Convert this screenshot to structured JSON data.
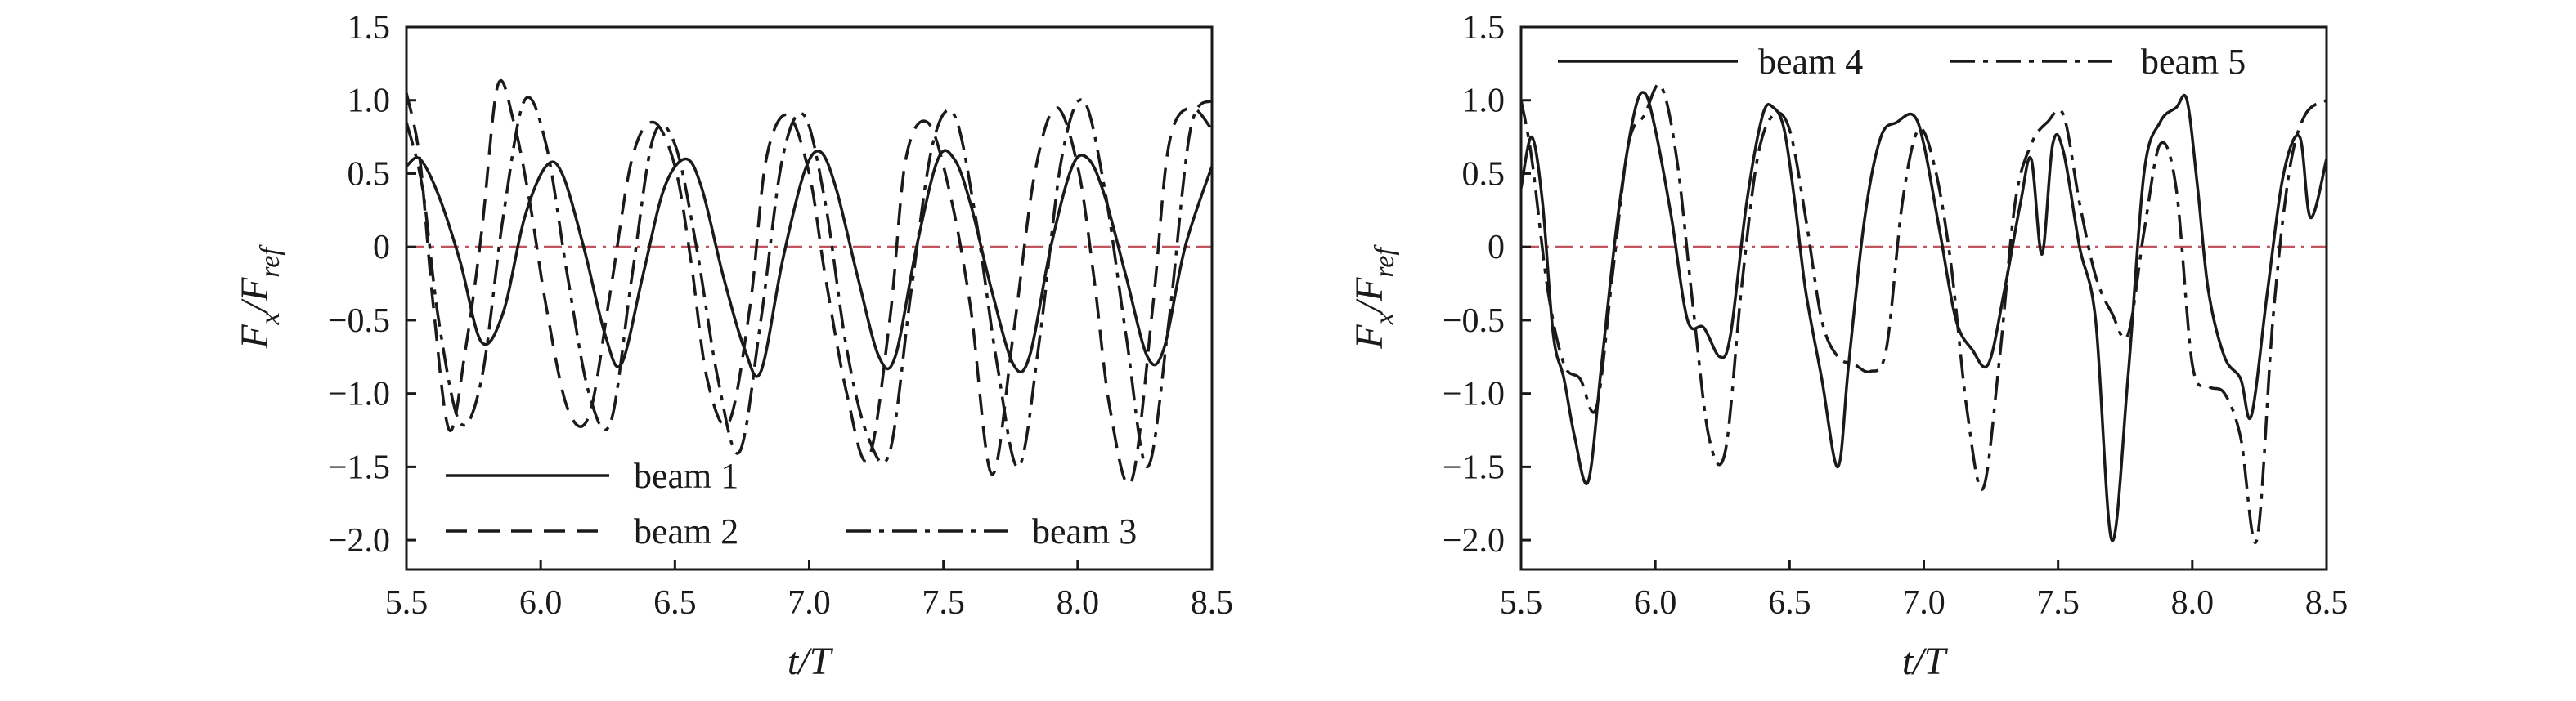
{
  "chart_data": [
    {
      "type": "line",
      "xlabel": "t/T",
      "ylabel": {
        "main": "F",
        "sub_x": "x",
        "sep": "/",
        "den": "F",
        "sub_ref": "ref"
      },
      "xlim": [
        5.5,
        8.5
      ],
      "ylim": [
        -2.2,
        1.5
      ],
      "xticks": [
        "5.5",
        "6.0",
        "6.5",
        "7.0",
        "7.5",
        "8.0",
        "8.5"
      ],
      "yticks": [
        "1.5",
        "1.0",
        "0.5",
        "0",
        "-0.5",
        "-1.0",
        "-1.5",
        "-2.0"
      ],
      "legend_position": "bottom",
      "reference_line": {
        "y": 0,
        "color": "#c0555f"
      },
      "series": [
        {
          "name": "beam 1",
          "style": "solid",
          "x": [
            5.5,
            5.55,
            5.62,
            5.7,
            5.78,
            5.86,
            5.94,
            6.02,
            6.08,
            6.16,
            6.24,
            6.3,
            6.38,
            6.46,
            6.54,
            6.6,
            6.68,
            6.76,
            6.82,
            6.9,
            6.98,
            7.04,
            7.1,
            7.18,
            7.26,
            7.32,
            7.4,
            7.48,
            7.54,
            7.6,
            7.68,
            7.76,
            7.82,
            7.9,
            7.98,
            8.04,
            8.1,
            8.18,
            8.26,
            8.32,
            8.4,
            8.5
          ],
          "y": [
            0.55,
            0.6,
            0.35,
            -0.1,
            -0.65,
            -0.45,
            0.2,
            0.55,
            0.5,
            0.0,
            -0.6,
            -0.8,
            -0.2,
            0.4,
            0.6,
            0.4,
            -0.2,
            -0.7,
            -0.85,
            -0.1,
            0.5,
            0.65,
            0.4,
            -0.2,
            -0.75,
            -0.75,
            0.0,
            0.6,
            0.6,
            0.3,
            -0.3,
            -0.8,
            -0.75,
            0.0,
            0.55,
            0.6,
            0.35,
            -0.2,
            -0.75,
            -0.7,
            0.0,
            0.55
          ]
        },
        {
          "name": "beam 2",
          "style": "dashed",
          "x": [
            5.5,
            5.55,
            5.6,
            5.66,
            5.72,
            5.78,
            5.84,
            5.9,
            5.96,
            6.02,
            6.1,
            6.18,
            6.26,
            6.34,
            6.42,
            6.5,
            6.56,
            6.62,
            6.7,
            6.78,
            6.84,
            6.92,
            7.0,
            7.06,
            7.14,
            7.22,
            7.3,
            7.36,
            7.44,
            7.52,
            7.6,
            7.68,
            7.76,
            7.84,
            7.92,
            8.0,
            8.06,
            8.12,
            8.2,
            8.28,
            8.34,
            8.42,
            8.5
          ],
          "y": [
            1.05,
            0.6,
            -0.4,
            -1.25,
            -0.7,
            0.1,
            1.1,
            0.85,
            0.3,
            -0.4,
            -1.1,
            -1.15,
            -0.3,
            0.6,
            0.85,
            0.55,
            -0.1,
            -0.9,
            -1.2,
            -0.4,
            0.6,
            0.9,
            0.5,
            -0.2,
            -1.0,
            -1.45,
            -0.5,
            0.6,
            0.85,
            0.4,
            -0.4,
            -1.55,
            -0.6,
            0.5,
            0.95,
            0.55,
            -0.2,
            -1.1,
            -1.6,
            -0.4,
            0.7,
            0.95,
            0.8
          ]
        },
        {
          "name": "beam 3",
          "style": "dashdot",
          "x": [
            5.5,
            5.56,
            5.62,
            5.7,
            5.78,
            5.86,
            5.94,
            6.02,
            6.1,
            6.18,
            6.26,
            6.34,
            6.42,
            6.5,
            6.58,
            6.66,
            6.74,
            6.82,
            6.9,
            6.98,
            7.06,
            7.14,
            7.22,
            7.3,
            7.38,
            7.46,
            7.54,
            7.62,
            7.7,
            7.78,
            7.86,
            7.94,
            8.02,
            8.1,
            8.18,
            8.26,
            8.34,
            8.42,
            8.5
          ],
          "y": [
            0.85,
            0.4,
            -0.5,
            -1.2,
            -0.9,
            0.2,
            1.0,
            0.7,
            -0.2,
            -1.0,
            -1.2,
            -0.2,
            0.75,
            0.7,
            0.0,
            -0.9,
            -1.4,
            -0.5,
            0.6,
            0.9,
            0.3,
            -0.7,
            -1.3,
            -1.4,
            -0.3,
            0.7,
            0.9,
            0.2,
            -0.8,
            -1.5,
            -0.6,
            0.6,
            1.0,
            0.4,
            -0.6,
            -1.5,
            -0.5,
            0.8,
            1.0
          ]
        }
      ]
    },
    {
      "type": "line",
      "xlabel": "t/T",
      "ylabel": {
        "main": "F",
        "sub_x": "x",
        "sep": "/",
        "den": "F",
        "sub_ref": "ref"
      },
      "xlim": [
        5.5,
        8.5
      ],
      "ylim": [
        -2.2,
        1.5
      ],
      "xticks": [
        "5.5",
        "6.0",
        "6.5",
        "7.0",
        "7.5",
        "8.0",
        "8.5"
      ],
      "yticks": [
        "1.5",
        "1.0",
        "0.5",
        "0",
        "-0.5",
        "-1.0",
        "-1.5",
        "-2.0"
      ],
      "legend_position": "top",
      "reference_line": {
        "y": 0,
        "color": "#c0555f"
      },
      "series": [
        {
          "name": "beam 4",
          "style": "solid",
          "x": [
            5.5,
            5.54,
            5.58,
            5.62,
            5.66,
            5.7,
            5.75,
            5.8,
            5.86,
            5.92,
            5.96,
            6.0,
            6.06,
            6.12,
            6.18,
            6.24,
            6.28,
            6.34,
            6.4,
            6.44,
            6.48,
            6.52,
            6.56,
            6.62,
            6.68,
            6.72,
            6.78,
            6.84,
            6.9,
            6.96,
            7.0,
            7.06,
            7.12,
            7.18,
            7.24,
            7.3,
            7.36,
            7.4,
            7.44,
            7.48,
            7.52,
            7.58,
            7.64,
            7.7,
            7.76,
            7.82,
            7.88,
            7.94,
            7.98,
            8.02,
            8.06,
            8.12,
            8.18,
            8.22,
            8.28,
            8.34,
            8.4,
            8.44,
            8.5
          ],
          "y": [
            0.4,
            0.75,
            0.3,
            -0.6,
            -0.9,
            -1.3,
            -1.6,
            -0.8,
            0.2,
            0.9,
            1.05,
            0.8,
            0.2,
            -0.5,
            -0.55,
            -0.75,
            -0.6,
            0.3,
            0.9,
            0.95,
            0.8,
            0.3,
            -0.3,
            -0.9,
            -1.5,
            -0.8,
            0.2,
            0.75,
            0.85,
            0.9,
            0.7,
            0.1,
            -0.5,
            -0.7,
            -0.8,
            -0.3,
            0.3,
            0.6,
            -0.05,
            0.7,
            0.65,
            0.0,
            -0.5,
            -2.0,
            -0.9,
            0.5,
            0.85,
            0.95,
            1.0,
            0.4,
            -0.3,
            -0.75,
            -0.9,
            -1.15,
            -0.3,
            0.5,
            0.75,
            0.2,
            0.6
          ]
        },
        {
          "name": "beam 5",
          "style": "dashdot",
          "x": [
            5.5,
            5.54,
            5.6,
            5.66,
            5.72,
            5.78,
            5.84,
            5.9,
            5.96,
            6.02,
            6.08,
            6.14,
            6.2,
            6.26,
            6.32,
            6.38,
            6.44,
            6.5,
            6.56,
            6.62,
            6.68,
            6.74,
            6.8,
            6.86,
            6.92,
            6.98,
            7.04,
            7.1,
            7.16,
            7.22,
            7.28,
            7.34,
            7.4,
            7.46,
            7.52,
            7.58,
            7.64,
            7.7,
            7.76,
            7.82,
            7.88,
            7.94,
            8.0,
            8.06,
            8.12,
            8.18,
            8.24,
            8.3,
            8.36,
            8.42,
            8.5
          ],
          "y": [
            1.0,
            0.6,
            -0.3,
            -0.8,
            -0.9,
            -1.1,
            -0.2,
            0.7,
            0.9,
            1.1,
            0.6,
            -0.4,
            -1.3,
            -1.4,
            -0.3,
            0.6,
            0.9,
            0.8,
            0.2,
            -0.5,
            -0.75,
            -0.8,
            -0.85,
            -0.7,
            0.3,
            0.8,
            0.55,
            -0.1,
            -1.1,
            -1.65,
            -0.8,
            0.3,
            0.7,
            0.85,
            0.9,
            0.3,
            -0.2,
            -0.45,
            -0.6,
            0.1,
            0.7,
            0.4,
            -0.8,
            -0.95,
            -1.0,
            -1.3,
            -2.0,
            -0.5,
            0.5,
            0.9,
            1.0
          ]
        }
      ]
    }
  ]
}
